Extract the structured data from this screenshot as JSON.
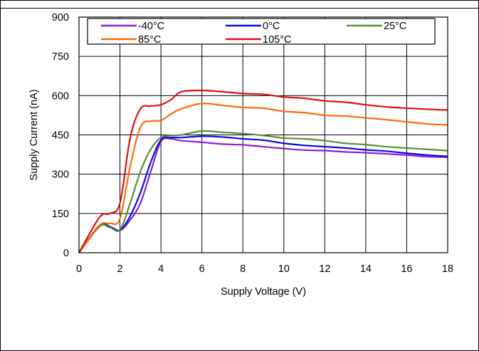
{
  "chart_data": {
    "type": "line",
    "xlabel": "Supply Voltage (V)",
    "ylabel": "Supply Current (nA)",
    "xlim": [
      0,
      18
    ],
    "ylim": [
      0,
      900
    ],
    "xticks": [
      0,
      2,
      4,
      6,
      8,
      10,
      12,
      14,
      16,
      18
    ],
    "yticks": [
      0,
      150,
      300,
      450,
      600,
      750,
      900
    ],
    "grid": true,
    "legend": "top",
    "series": [
      {
        "name": "-40°C",
        "color": "#8B1FD4",
        "x": [
          0,
          1,
          1.5,
          2,
          2.5,
          3,
          3.5,
          4,
          4.5,
          5,
          6,
          7,
          8,
          9,
          10,
          11,
          12,
          13,
          14,
          15,
          16,
          17,
          18
        ],
        "y": [
          0,
          100,
          100,
          85,
          125,
          190,
          310,
          425,
          435,
          428,
          422,
          415,
          412,
          405,
          398,
          392,
          390,
          385,
          382,
          378,
          373,
          367,
          365
        ]
      },
      {
        "name": "0°C",
        "color": "#0A0AE0",
        "x": [
          0,
          1,
          1.5,
          2,
          2.5,
          3,
          3.5,
          4,
          4.5,
          5,
          6,
          7,
          8,
          9,
          10,
          11,
          12,
          13,
          14,
          15,
          16,
          17,
          18
        ],
        "y": [
          0,
          105,
          100,
          87,
          140,
          230,
          345,
          430,
          440,
          440,
          445,
          442,
          435,
          430,
          418,
          410,
          405,
          400,
          393,
          388,
          380,
          373,
          368
        ]
      },
      {
        "name": "25°C",
        "color": "#5B8E32",
        "x": [
          0,
          1,
          1.5,
          2,
          2.5,
          3,
          3.5,
          4,
          4.5,
          5,
          6,
          7,
          8,
          9,
          10,
          11,
          12,
          13,
          14,
          15,
          16,
          17,
          18
        ],
        "y": [
          0,
          100,
          97,
          88,
          190,
          310,
          395,
          440,
          448,
          450,
          465,
          460,
          455,
          448,
          438,
          435,
          428,
          418,
          413,
          405,
          400,
          395,
          390
        ]
      },
      {
        "name": "85°C",
        "color": "#FF6A0A",
        "x": [
          0,
          1,
          1.5,
          2,
          2.5,
          3,
          3.5,
          4,
          4.5,
          5,
          6,
          7,
          8,
          9,
          10,
          11,
          12,
          13,
          14,
          15,
          16,
          17,
          18
        ],
        "y": [
          0,
          105,
          112,
          130,
          330,
          480,
          503,
          505,
          530,
          550,
          570,
          563,
          555,
          552,
          540,
          535,
          525,
          522,
          515,
          508,
          500,
          492,
          488
        ]
      },
      {
        "name": "105°C",
        "color": "#E01010",
        "x": [
          0,
          1,
          1.5,
          2,
          2.5,
          3,
          3.5,
          4,
          4.5,
          5,
          6,
          7,
          8,
          9,
          10,
          11,
          12,
          13,
          14,
          15,
          16,
          17,
          18
        ],
        "y": [
          0,
          135,
          150,
          190,
          440,
          550,
          560,
          565,
          585,
          615,
          620,
          615,
          608,
          605,
          595,
          590,
          580,
          575,
          565,
          557,
          552,
          548,
          545
        ]
      }
    ]
  }
}
